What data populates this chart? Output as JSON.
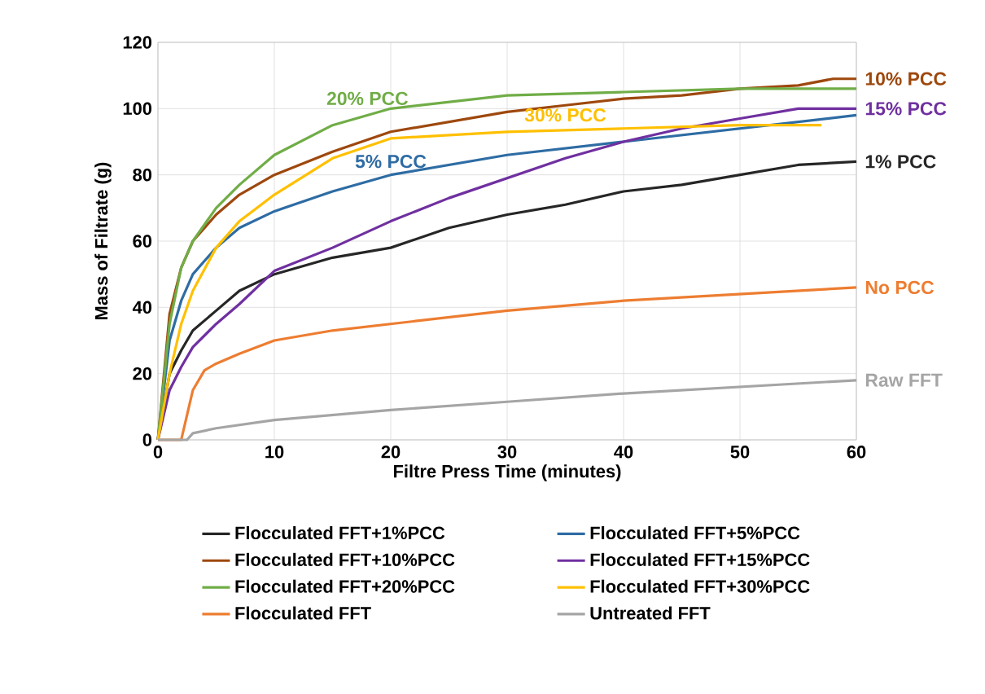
{
  "chart_data": {
    "type": "line",
    "xlabel": "Filtre Press Time (minutes)",
    "ylabel": "Mass of Filtrate (g)",
    "xlim": [
      0,
      60
    ],
    "ylim": [
      0,
      120
    ],
    "xticks": [
      0,
      10,
      20,
      30,
      40,
      50,
      60
    ],
    "yticks": [
      0,
      20,
      40,
      60,
      80,
      100,
      120
    ],
    "grid": true,
    "legend": "bottom",
    "marker": "none",
    "line_style": "solid",
    "series": [
      {
        "name": "Flocculated FFT+1%PCC",
        "color": "#262626",
        "x": [
          0,
          1,
          2,
          3,
          5,
          7,
          10,
          15,
          20,
          25,
          30,
          35,
          40,
          45,
          50,
          55,
          60
        ],
        "values": [
          0,
          20,
          27,
          33,
          39,
          45,
          50,
          55,
          58,
          64,
          68,
          71,
          75,
          77,
          80,
          83,
          84
        ]
      },
      {
        "name": "Flocculated FFT+5%PCC",
        "color": "#2e6ca4",
        "x": [
          0,
          1,
          2,
          3,
          5,
          7,
          10,
          15,
          20,
          25,
          30,
          40,
          50,
          60
        ],
        "values": [
          0,
          30,
          42,
          50,
          58,
          64,
          69,
          75,
          80,
          83,
          86,
          90,
          94,
          98
        ]
      },
      {
        "name": "Flocculated FFT+10%PCC",
        "color": "#9e480e",
        "x": [
          0,
          1,
          2,
          3,
          5,
          7,
          10,
          15,
          20,
          25,
          30,
          35,
          40,
          45,
          50,
          55,
          58,
          60
        ],
        "values": [
          0,
          38,
          52,
          60,
          68,
          74,
          80,
          87,
          93,
          96,
          99,
          101,
          103,
          104,
          106,
          107,
          109,
          109
        ]
      },
      {
        "name": "Flocculated FFT+15%PCC",
        "color": "#7030a0",
        "x": [
          0,
          1,
          2,
          3,
          5,
          7,
          10,
          15,
          20,
          25,
          30,
          35,
          40,
          45,
          50,
          55,
          60
        ],
        "values": [
          0,
          15,
          22,
          28,
          35,
          41,
          51,
          58,
          66,
          73,
          79,
          85,
          90,
          94,
          97,
          100,
          100
        ]
      },
      {
        "name": "Flocculated FFT+20%PCC",
        "color": "#70ad47",
        "x": [
          0,
          1,
          2,
          3,
          5,
          7,
          10,
          15,
          20,
          25,
          30,
          40,
          50,
          60
        ],
        "values": [
          0,
          35,
          52,
          60,
          70,
          77,
          86,
          95,
          100,
          102,
          104,
          105,
          106,
          106
        ]
      },
      {
        "name": "Flocculated FFT+30%PCC",
        "color": "#ffc000",
        "x": [
          0,
          1,
          2,
          3,
          5,
          7,
          10,
          15,
          20,
          25,
          30,
          40,
          50,
          57
        ],
        "values": [
          0,
          20,
          35,
          45,
          58,
          66,
          74,
          85,
          91,
          92,
          93,
          94,
          95,
          95
        ]
      },
      {
        "name": "Flocculated FFT",
        "color": "#ed7d31",
        "x": [
          0,
          2,
          3,
          4,
          5,
          7,
          10,
          15,
          20,
          30,
          40,
          50,
          60
        ],
        "values": [
          0,
          0,
          15,
          21,
          23,
          26,
          30,
          33,
          35,
          39,
          42,
          44,
          46
        ]
      },
      {
        "name": "Untreated FFT",
        "color": "#a5a5a5",
        "x": [
          0,
          2.5,
          3,
          5,
          10,
          20,
          30,
          40,
          50,
          60
        ],
        "values": [
          0,
          0,
          2,
          3.5,
          6,
          9,
          11.5,
          14,
          16,
          18
        ]
      }
    ],
    "annotations": [
      {
        "text": "20% PCC",
        "x": 18,
        "y": 99
      },
      {
        "text": "5% PCC",
        "x": 20,
        "y": 80
      },
      {
        "text": "30% PCC",
        "x": 35,
        "y": 94
      },
      {
        "text": "10% PCC",
        "x": 60,
        "y": 109
      },
      {
        "text": "15% PCC",
        "x": 60,
        "y": 100
      },
      {
        "text": "1% PCC",
        "x": 60,
        "y": 84
      },
      {
        "text": "No PCC",
        "x": 60,
        "y": 46
      },
      {
        "text": "Raw FFT",
        "x": 60,
        "y": 18
      }
    ]
  }
}
